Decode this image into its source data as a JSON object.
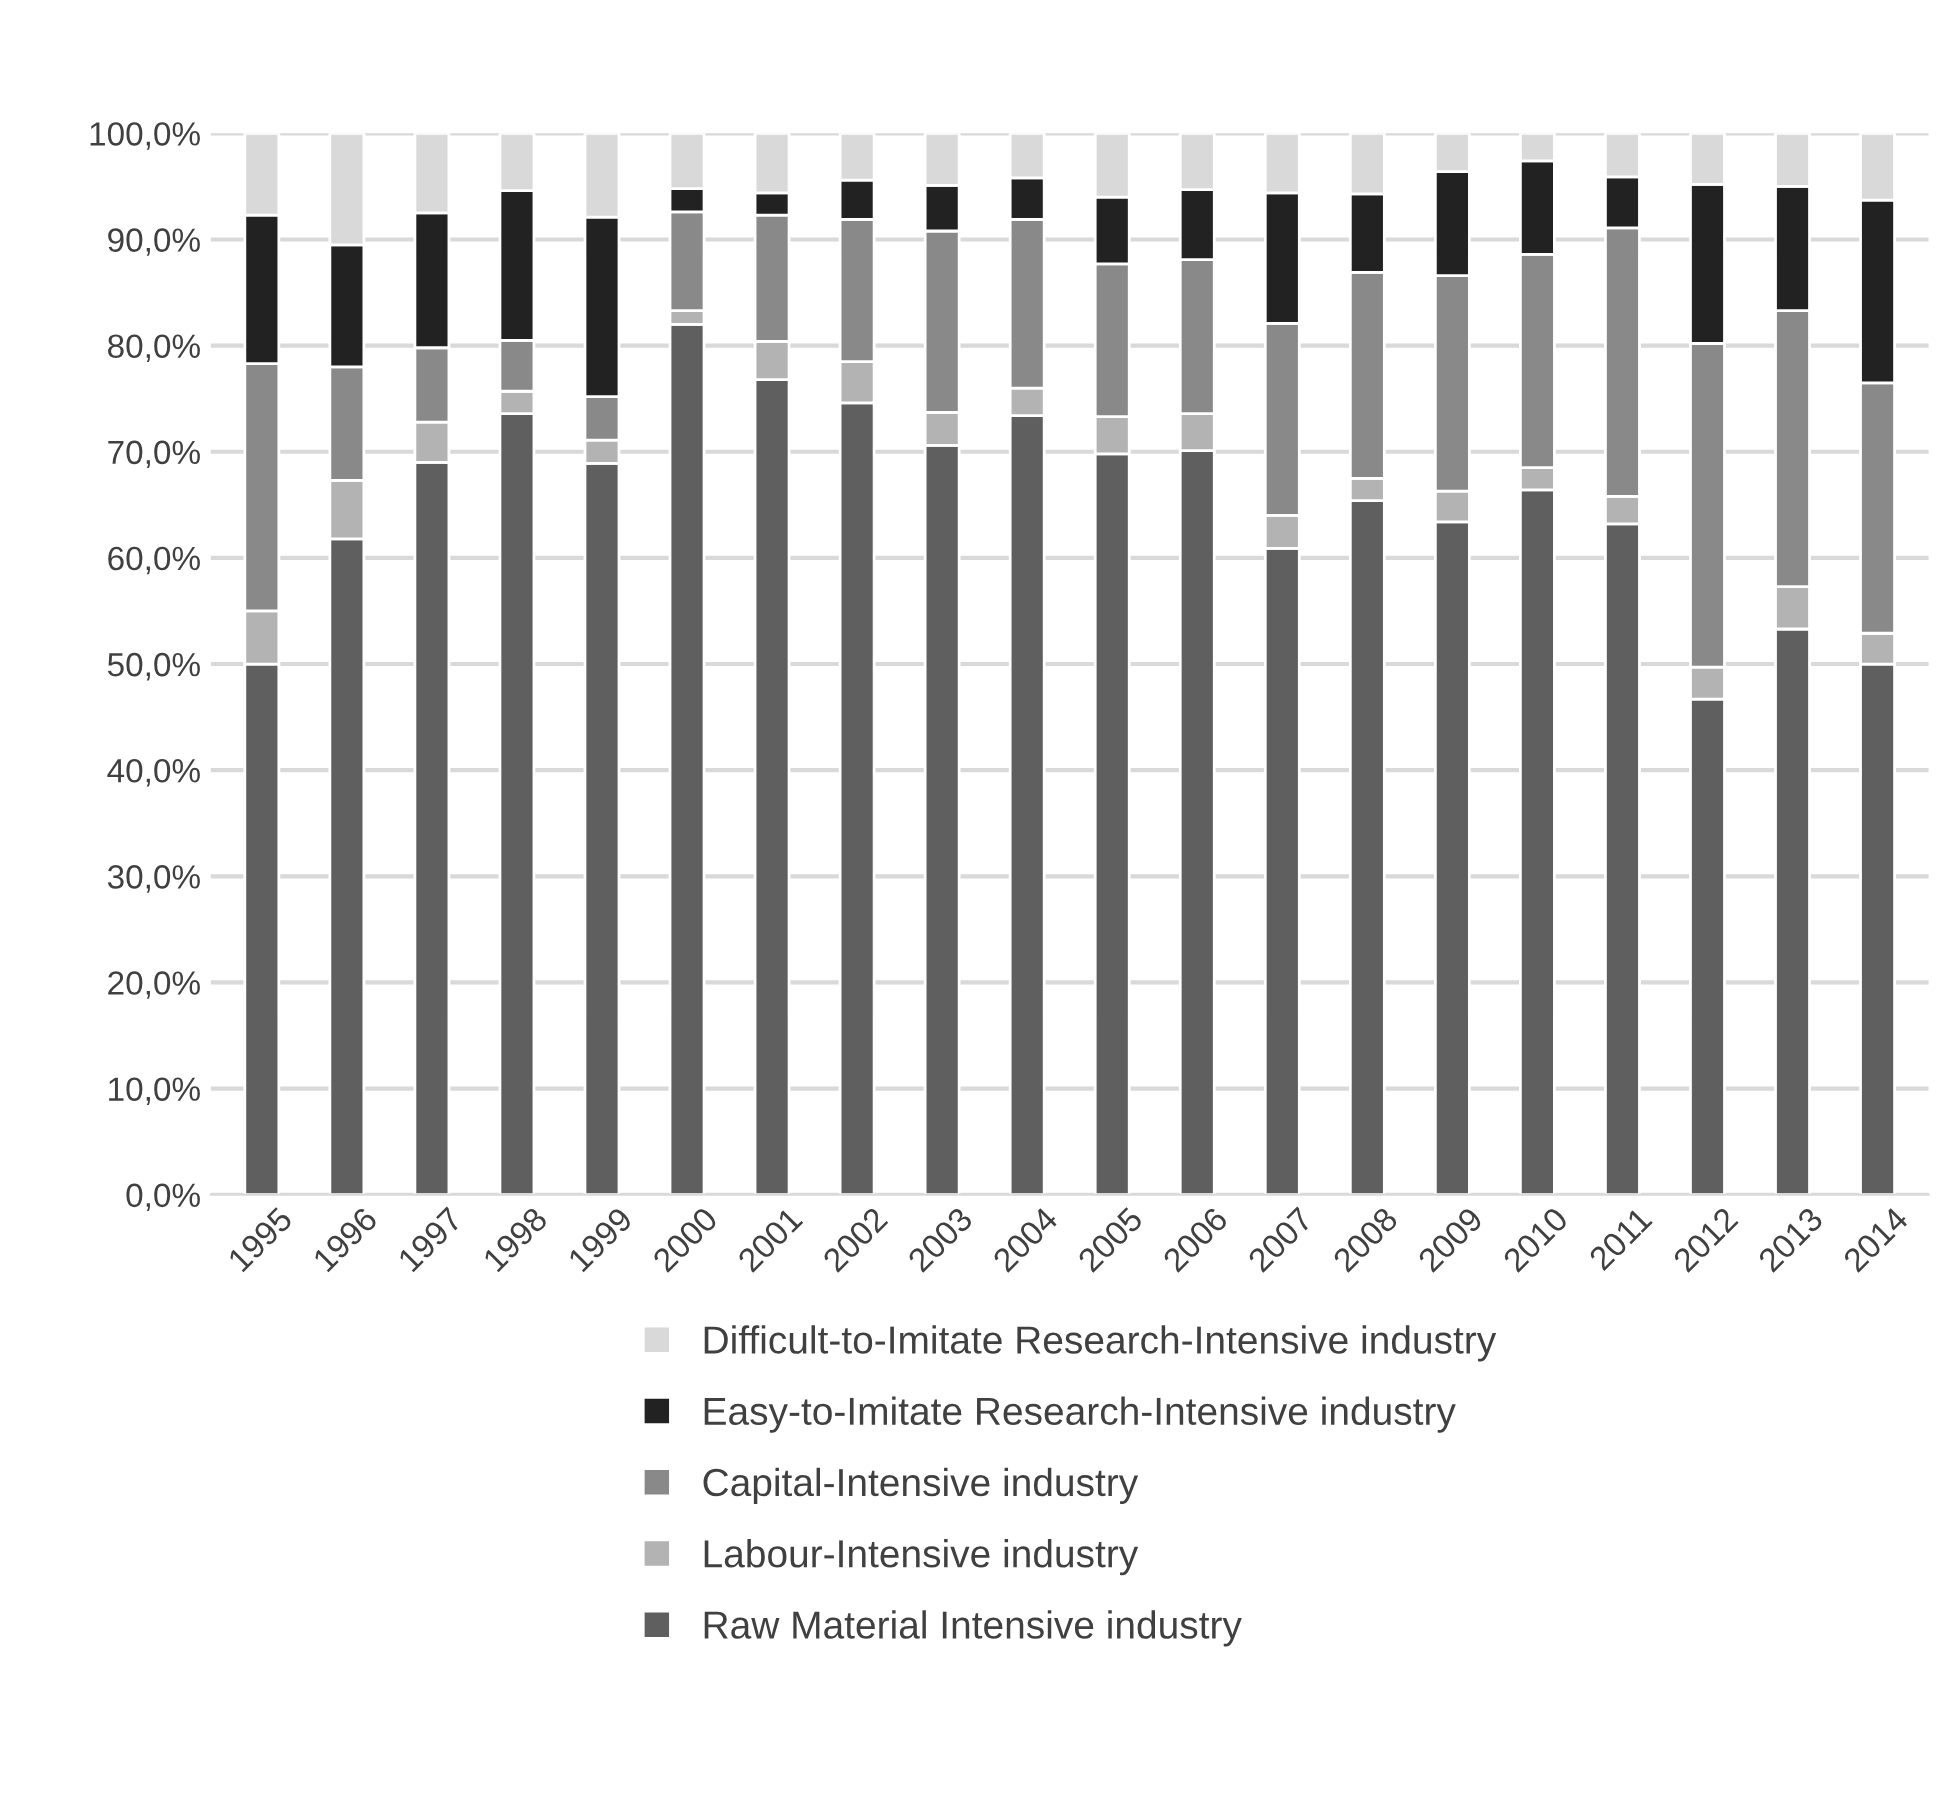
{
  "chart_data": {
    "type": "bar",
    "stacked": true,
    "categories": [
      "1995",
      "1996",
      "1997",
      "1998",
      "1999",
      "2000",
      "2001",
      "2002",
      "2003",
      "2004",
      "2005",
      "2006",
      "2007",
      "2008",
      "2009",
      "2010",
      "2011",
      "2012",
      "2013",
      "2014"
    ],
    "series": [
      {
        "name": "Raw Material Intensive industry",
        "color": "#5f5f5f",
        "values": [
          50.0,
          61.8,
          69.0,
          73.6,
          68.9,
          82.0,
          76.8,
          74.6,
          70.6,
          73.4,
          69.8,
          70.1,
          60.9,
          65.4,
          63.4,
          66.4,
          63.2,
          46.7,
          53.3,
          50.0
        ]
      },
      {
        "name": "Labour-Intensive industry",
        "color": "#b3b3b3",
        "values": [
          5.0,
          5.5,
          3.8,
          2.1,
          2.2,
          1.3,
          3.6,
          3.9,
          3.1,
          2.6,
          3.5,
          3.5,
          3.1,
          2.1,
          2.9,
          2.1,
          2.6,
          3.0,
          4.0,
          2.9
        ]
      },
      {
        "name": "Capital-Intensive industry",
        "color": "#898989",
        "values": [
          23.3,
          10.7,
          7.0,
          4.8,
          4.1,
          9.3,
          11.9,
          13.4,
          17.1,
          15.9,
          14.4,
          14.5,
          18.1,
          19.4,
          20.3,
          20.1,
          25.3,
          30.5,
          26.0,
          23.6
        ]
      },
      {
        "name": "Easy-to-Imitate Research-Intensive industry",
        "color": "#222222",
        "values": [
          14.0,
          11.5,
          12.7,
          14.1,
          16.9,
          2.2,
          2.1,
          3.7,
          4.3,
          3.9,
          6.3,
          6.6,
          12.3,
          7.4,
          9.8,
          8.8,
          4.8,
          15.0,
          11.7,
          17.2
        ]
      },
      {
        "name": "Difficult-to-Imitate Research-Intensive industry",
        "color": "#d9d9d9",
        "values": [
          7.7,
          10.5,
          7.5,
          5.4,
          7.9,
          5.2,
          5.6,
          4.4,
          4.9,
          4.2,
          6.0,
          5.3,
          5.6,
          5.7,
          3.6,
          2.6,
          4.1,
          4.8,
          5.0,
          6.3
        ]
      }
    ],
    "ylim": [
      0,
      100
    ],
    "yticks": [
      {
        "value": 0,
        "label": "0,0%"
      },
      {
        "value": 10,
        "label": "10,0%"
      },
      {
        "value": 20,
        "label": "20,0%"
      },
      {
        "value": 30,
        "label": "30,0%"
      },
      {
        "value": 40,
        "label": "40,0%"
      },
      {
        "value": 50,
        "label": "50,0%"
      },
      {
        "value": 60,
        "label": "60,0%"
      },
      {
        "value": 70,
        "label": "70,0%"
      },
      {
        "value": 80,
        "label": "80,0%"
      },
      {
        "value": 90,
        "label": "90,0%"
      },
      {
        "value": 100,
        "label": "100,0%"
      }
    ],
    "grid": "y",
    "legend": "bottom"
  }
}
